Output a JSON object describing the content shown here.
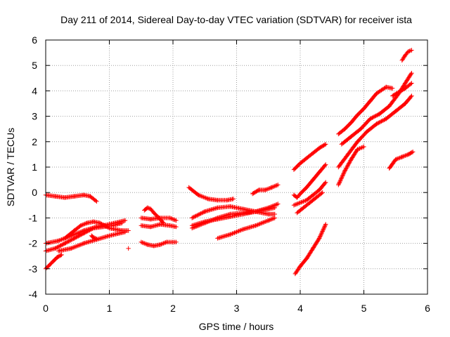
{
  "chart_data": {
    "type": "scatter",
    "title": "Day 211 of 2014, Sidereal Day-to-day VTEC variation (SDTVAR) for receiver ista",
    "xlabel": "GPS time / hours",
    "ylabel": "SDTVAR / TECUs",
    "xlim": [
      0,
      6
    ],
    "ylim": [
      -4,
      6
    ],
    "xticks": [
      "0",
      "1",
      "2",
      "3",
      "4",
      "5",
      "6"
    ],
    "yticks": [
      "-4",
      "-3",
      "-2",
      "-1",
      "0",
      "1",
      "2",
      "3",
      "4",
      "5",
      "6"
    ],
    "grid": true,
    "marker": "plus",
    "color": "#ff0000",
    "tracks": [
      {
        "x": [
          0.0,
          0.15,
          0.3,
          0.45,
          0.6,
          0.7,
          0.8
        ],
        "y": [
          -0.1,
          -0.15,
          -0.2,
          -0.15,
          -0.1,
          -0.15,
          -0.35
        ]
      },
      {
        "x": [
          0.0,
          0.15,
          0.3,
          0.45,
          0.6,
          0.75,
          0.9,
          1.05,
          1.2
        ],
        "y": [
          -2.3,
          -2.2,
          -2.0,
          -1.8,
          -1.6,
          -1.4,
          -1.35,
          -1.3,
          -1.2
        ]
      },
      {
        "x": [
          0.0,
          0.2,
          0.4,
          0.6,
          0.8,
          1.0,
          1.25
        ],
        "y": [
          -2.0,
          -1.9,
          -1.7,
          -1.5,
          -1.35,
          -1.25,
          -1.1
        ]
      },
      {
        "x": [
          0.2,
          0.4,
          0.6,
          0.8,
          1.0,
          1.25
        ],
        "y": [
          -2.3,
          -2.2,
          -2.0,
          -1.85,
          -1.7,
          -1.55
        ]
      },
      {
        "x": [
          0.3,
          0.45,
          0.55,
          0.65,
          0.75,
          0.85,
          1.0,
          1.2,
          1.3
        ],
        "y": [
          -1.8,
          -1.5,
          -1.3,
          -1.2,
          -1.15,
          -1.2,
          -1.4,
          -1.5,
          -1.5
        ]
      },
      {
        "x": [
          0.0,
          0.04,
          0.08,
          0.12,
          0.18,
          0.25
        ],
        "y": [
          -3.0,
          -2.9,
          -2.8,
          -2.7,
          -2.55,
          -2.45
        ]
      },
      {
        "x": [
          1.55,
          1.6,
          1.65,
          1.7,
          1.78,
          1.85
        ],
        "y": [
          -0.7,
          -0.6,
          -0.65,
          -0.8,
          -1.0,
          -1.2
        ]
      },
      {
        "x": [
          1.5,
          1.65,
          1.8,
          1.95,
          2.05
        ],
        "y": [
          -1.0,
          -1.05,
          -1.0,
          -1.0,
          -1.1
        ]
      },
      {
        "x": [
          1.5,
          1.65,
          1.8,
          1.95,
          2.05
        ],
        "y": [
          -1.3,
          -1.35,
          -1.25,
          -1.3,
          -1.35
        ]
      },
      {
        "x": [
          1.5,
          1.6,
          1.7,
          1.8,
          1.9,
          2.05
        ],
        "y": [
          -1.95,
          -2.05,
          -2.1,
          -2.05,
          -1.95,
          -1.95
        ]
      },
      {
        "x": [
          2.25,
          2.4,
          2.55,
          2.7,
          2.85,
          2.95
        ],
        "y": [
          0.2,
          -0.1,
          -0.25,
          -0.3,
          -0.3,
          -0.25
        ]
      },
      {
        "x": [
          2.3,
          2.5,
          2.7,
          2.9,
          3.1,
          3.3,
          3.5,
          3.65
        ],
        "y": [
          -1.4,
          -1.2,
          -1.0,
          -0.85,
          -0.8,
          -0.75,
          -0.6,
          -0.45
        ]
      },
      {
        "x": [
          2.3,
          2.5,
          2.7,
          2.9,
          3.1,
          3.3,
          3.5,
          3.6
        ],
        "y": [
          -1.0,
          -0.75,
          -0.6,
          -0.55,
          -0.65,
          -0.75,
          -0.85,
          -0.85
        ]
      },
      {
        "x": [
          2.3,
          2.5,
          2.7,
          2.9,
          3.1,
          3.3,
          3.5,
          3.6
        ],
        "y": [
          -1.3,
          -1.15,
          -1.05,
          -0.95,
          -0.85,
          -0.75,
          -0.65,
          -0.6
        ]
      },
      {
        "x": [
          2.7,
          2.9,
          3.1,
          3.3,
          3.5,
          3.6
        ],
        "y": [
          -1.8,
          -1.65,
          -1.45,
          -1.3,
          -1.1,
          -1.0
        ]
      },
      {
        "x": [
          3.25,
          3.35,
          3.45,
          3.55,
          3.65
        ],
        "y": [
          -0.05,
          0.1,
          0.1,
          0.2,
          0.3
        ]
      },
      {
        "x": [
          3.9,
          4.0,
          4.1,
          4.2,
          4.3,
          4.4
        ],
        "y": [
          0.9,
          1.15,
          1.35,
          1.55,
          1.75,
          1.9
        ]
      },
      {
        "x": [
          3.9,
          3.95,
          4.0,
          4.1,
          4.2,
          4.3,
          4.4
        ],
        "y": [
          -0.1,
          -0.2,
          -0.05,
          0.2,
          0.5,
          0.8,
          1.1
        ]
      },
      {
        "x": [
          3.9,
          4.0,
          4.1,
          4.2,
          4.3,
          4.4
        ],
        "y": [
          -0.5,
          -0.4,
          -0.3,
          -0.1,
          0.1,
          0.4
        ]
      },
      {
        "x": [
          3.95,
          4.05,
          4.15,
          4.25,
          4.35
        ],
        "y": [
          -0.8,
          -0.6,
          -0.4,
          -0.2,
          0.0
        ]
      },
      {
        "x": [
          3.92,
          4.0,
          4.1,
          4.2,
          4.3,
          4.4
        ],
        "y": [
          -3.2,
          -2.9,
          -2.6,
          -2.2,
          -1.8,
          -1.25
        ]
      },
      {
        "x": [
          4.6,
          4.7,
          4.8,
          4.9,
          5.0,
          5.1,
          5.2,
          5.35,
          5.45
        ],
        "y": [
          2.3,
          2.5,
          2.75,
          3.05,
          3.3,
          3.6,
          3.9,
          4.15,
          4.1
        ]
      },
      {
        "x": [
          4.65,
          4.8,
          4.95,
          5.1,
          5.25,
          5.4,
          5.55,
          5.65,
          5.75
        ],
        "y": [
          1.9,
          2.2,
          2.5,
          2.9,
          3.1,
          3.4,
          3.9,
          4.3,
          4.7
        ]
      },
      {
        "x": [
          4.6,
          4.75,
          4.9,
          5.05,
          5.2,
          5.35,
          5.5,
          5.65,
          5.75
        ],
        "y": [
          1.0,
          1.5,
          2.0,
          2.4,
          2.7,
          2.9,
          3.2,
          3.5,
          3.8
        ]
      },
      {
        "x": [
          4.6,
          4.7,
          4.8,
          4.9,
          5.0
        ],
        "y": [
          0.3,
          0.85,
          1.3,
          1.7,
          1.8
        ]
      },
      {
        "x": [
          5.45,
          5.55,
          5.65,
          5.75
        ],
        "y": [
          3.8,
          3.95,
          4.1,
          4.3
        ]
      },
      {
        "x": [
          5.4,
          5.5,
          5.6,
          5.7,
          5.77
        ],
        "y": [
          0.95,
          1.3,
          1.4,
          1.5,
          1.6
        ]
      },
      {
        "x": [
          5.6,
          5.65,
          5.7,
          5.75
        ],
        "y": [
          5.2,
          5.4,
          5.55,
          5.6
        ]
      },
      {
        "x": [
          0.72,
          0.74,
          0.76,
          0.78,
          0.8
        ],
        "y": [
          -1.7,
          -1.75,
          -1.78,
          -1.8,
          -1.82
        ]
      },
      {
        "x": [
          1.3
        ],
        "y": [
          -2.2
        ]
      }
    ]
  }
}
